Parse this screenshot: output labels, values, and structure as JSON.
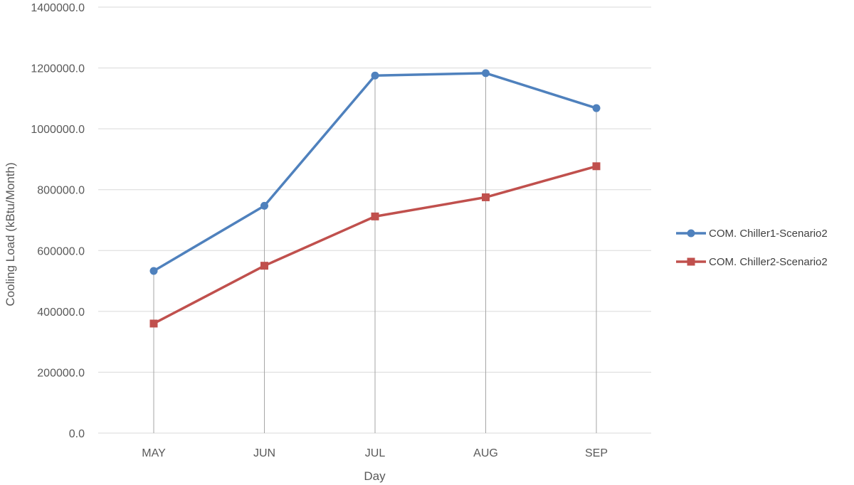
{
  "chart_data": {
    "type": "line",
    "title": "",
    "xlabel": "Day",
    "ylabel": "Cooling Load (kBtu/Month)",
    "categories": [
      "MAY",
      "JUN",
      "JUL",
      "AUG",
      "SEP"
    ],
    "ylim": [
      0,
      1400000
    ],
    "yticks": [
      0,
      200000,
      400000,
      600000,
      800000,
      1000000,
      1200000,
      1400000
    ],
    "ytick_labels": [
      "0.0",
      "200000.0",
      "400000.0",
      "600000.0",
      "800000.0",
      "1000000.0",
      "1200000.0",
      "1400000.0"
    ],
    "grid": true,
    "drop_lines": true,
    "legend_position": "right",
    "series": [
      {
        "name": "COM. Chiller1-Scenario2",
        "color": "#4F81BD",
        "marker": "circle",
        "values": [
          533000,
          747000,
          1175000,
          1183000,
          1068000
        ]
      },
      {
        "name": "COM. Chiller2-Scenario2",
        "color": "#C0504D",
        "marker": "square",
        "values": [
          360000,
          550000,
          712000,
          775000,
          877000
        ]
      }
    ]
  }
}
